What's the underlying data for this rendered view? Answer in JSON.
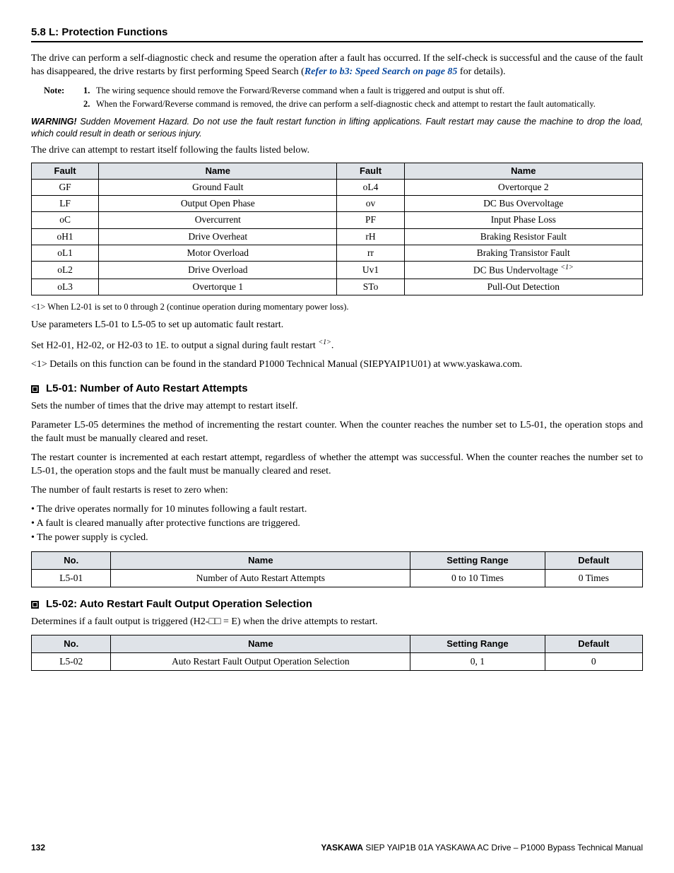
{
  "section_header": "5.8 L: Protection Functions",
  "intro_part1": "The drive can perform a self-diagnostic check and resume the operation after a fault has occurred. If the self-check is successful and the cause of the fault has disappeared, the drive restarts by first performing Speed Search (",
  "intro_link": "Refer to b3: Speed Search on page 85",
  "intro_part2": " for details).",
  "note_label": "Note:",
  "notes": [
    {
      "num": "1.",
      "text": "The wiring sequence should remove the Forward/Reverse command when a fault is triggered and output is shut off."
    },
    {
      "num": "2.",
      "text": "When the Forward/Reverse command is removed, the drive can perform a self-diagnostic check and attempt to restart the fault automatically."
    }
  ],
  "warning_label": "WARNING!",
  "warning_text": " Sudden Movement Hazard. Do not use the fault restart function in lifting applications. Fault restart may cause the machine to drop the load, which could result in death or serious injury.",
  "restart_sentence": "The drive can attempt to restart itself following the faults listed below.",
  "fault_headers": {
    "fault": "Fault",
    "name": "Name"
  },
  "fault_rows": [
    {
      "c1": "GF",
      "n1": "Ground Fault",
      "c2": "oL4",
      "n2": "Overtorque 2"
    },
    {
      "c1": "LF",
      "n1": "Output Open Phase",
      "c2": "ov",
      "n2": "DC Bus Overvoltage"
    },
    {
      "c1": "oC",
      "n1": "Overcurrent",
      "c2": "PF",
      "n2": "Input Phase Loss"
    },
    {
      "c1": "oH1",
      "n1": "Drive Overheat",
      "c2": "rH",
      "n2": "Braking Resistor Fault"
    },
    {
      "c1": "oL1",
      "n1": "Motor Overload",
      "c2": "rr",
      "n2": "Braking Transistor Fault"
    },
    {
      "c1": "oL2",
      "n1": "Drive Overload",
      "c2": "Uv1",
      "n2": "DC Bus Undervoltage ",
      "sup": "<1>"
    },
    {
      "c1": "oL3",
      "n1": "Overtorque 1",
      "c2": "STo",
      "n2": "Pull-Out Detection"
    }
  ],
  "table_footnote": "<1>   When L2-01 is set to 0 through 2 (continue operation during momentary power loss).",
  "para_use": "Use parameters L5-01 to L5-05 to set up automatic fault restart.",
  "para_set_a": "Set H2-01, H2-02, or H2-03 to 1E. to output a signal during fault restart ",
  "para_set_sup": "<1>",
  "para_set_b": ".",
  "para_details": "<1> Details on this function can be found in the standard P1000 Technical Manual (SIEPYAIP1U01) at www.yaskawa.com.",
  "h_l501": "L5-01: Number of Auto Restart Attempts",
  "l501_p1": "Sets the number of times that the drive may attempt to restart itself.",
  "l501_p2": "Parameter L5-05 determines the method of incrementing the restart counter. When the counter reaches the number set to L5-01, the operation stops and the fault must be manually cleared and reset.",
  "l501_p3": "The restart counter is incremented at each restart attempt, regardless of whether the attempt was successful. When the counter reaches the number set to L5-01, the operation stops and the fault must be manually cleared and reset.",
  "l501_p4": "The number of fault restarts is reset to zero when:",
  "l501_bullets": [
    "The drive operates normally for 10 minutes following a fault restart.",
    "A fault is cleared manually after protective functions are triggered.",
    "The power supply is cycled."
  ],
  "param_headers": {
    "no": "No.",
    "name": "Name",
    "range": "Setting Range",
    "def": "Default"
  },
  "l501_row": {
    "no": "L5-01",
    "name": "Number of Auto Restart Attempts",
    "range": "0 to 10 Times",
    "def": "0 Times"
  },
  "h_l502": "L5-02: Auto Restart Fault Output Operation Selection",
  "l502_p1": "Determines if a fault output is triggered (H2-□□ = E) when the drive attempts to restart.",
  "l502_row": {
    "no": "L5-02",
    "name": "Auto Restart Fault Output Operation Selection",
    "range": "0, 1",
    "def": "0"
  },
  "footer_page": "132",
  "footer_brand": "YASKAWA",
  "footer_doc": " SIEP YAIP1B 01A YASKAWA AC Drive – P1000 Bypass Technical Manual"
}
